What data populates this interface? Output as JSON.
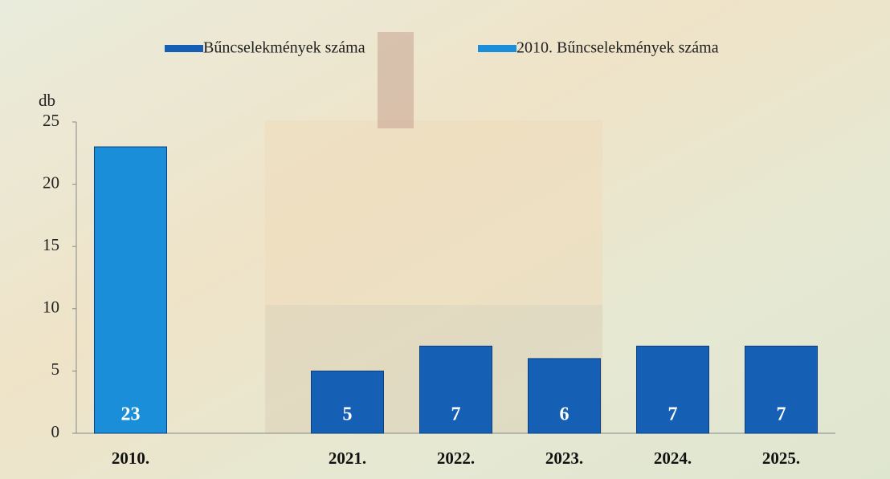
{
  "chart_data": {
    "type": "bar",
    "y_label": "db",
    "categories": [
      "2010.",
      null,
      "2021.",
      "2022.",
      "2023.",
      "2024.",
      "2025."
    ],
    "series": [
      {
        "name": "Bűncselekmények száma",
        "color": "#1560b4",
        "values": [
          null,
          null,
          5,
          7,
          6,
          7,
          7
        ]
      },
      {
        "name": "2010. Bűncselekmények száma",
        "color": "#1a8ed8",
        "values": [
          23,
          null,
          null,
          null,
          null,
          null,
          null
        ]
      }
    ],
    "ylim": [
      0,
      25
    ],
    "yticks": [
      0,
      5,
      10,
      15,
      20,
      25
    ],
    "legend": "top"
  }
}
